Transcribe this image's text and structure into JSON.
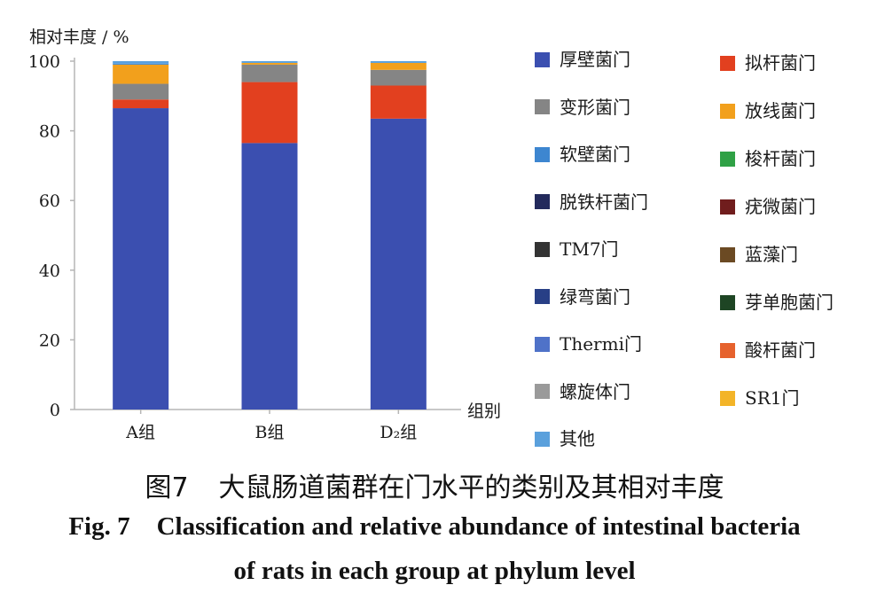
{
  "chart_data": {
    "type": "bar",
    "stacked": true,
    "ylabel": "相对丰度 / %",
    "xlabel": "组别",
    "ylim": [
      0,
      100
    ],
    "yticks": [
      0,
      20,
      40,
      60,
      80,
      100
    ],
    "categories": [
      "A组",
      "B组",
      "D₂组"
    ],
    "series": [
      {
        "name": "厚壁菌门",
        "color": "#3b4fb0",
        "values": [
          86.5,
          76.5,
          83.5
        ]
      },
      {
        "name": "拟杆菌门",
        "color": "#e2401f",
        "values": [
          2.5,
          17.5,
          9.5
        ]
      },
      {
        "name": "变形菌门",
        "color": "#858585",
        "values": [
          4.5,
          5.0,
          4.5
        ]
      },
      {
        "name": "放线菌门",
        "color": "#f2a01c",
        "values": [
          5.5,
          0.5,
          2.0
        ]
      },
      {
        "name": "软壁菌门",
        "color": "#3d86d0",
        "values": [
          0.3,
          0.0,
          0.0
        ]
      },
      {
        "name": "梭杆菌门",
        "color": "#2fa145",
        "values": [
          0.0,
          0.0,
          0.0
        ]
      },
      {
        "name": "脱铁杆菌门",
        "color": "#232a5c",
        "values": [
          0.0,
          0.0,
          0.0
        ]
      },
      {
        "name": "疣微菌门",
        "color": "#701d1d",
        "values": [
          0.0,
          0.0,
          0.0
        ]
      },
      {
        "name": "TM7门",
        "color": "#333333",
        "values": [
          0.0,
          0.0,
          0.0
        ]
      },
      {
        "name": "蓝藻门",
        "color": "#6b4a23",
        "values": [
          0.0,
          0.0,
          0.0
        ]
      },
      {
        "name": "绿弯菌门",
        "color": "#283f86",
        "values": [
          0.0,
          0.0,
          0.0
        ]
      },
      {
        "name": "芽单胞菌门",
        "color": "#1e4524",
        "values": [
          0.0,
          0.0,
          0.0
        ]
      },
      {
        "name": "Thermi门",
        "color": "#4f72c8",
        "values": [
          0.0,
          0.0,
          0.0
        ]
      },
      {
        "name": "酸杆菌门",
        "color": "#e6622d",
        "values": [
          0.0,
          0.0,
          0.0
        ]
      },
      {
        "name": "螺旋体门",
        "color": "#9a9a9a",
        "values": [
          0.0,
          0.0,
          0.0
        ]
      },
      {
        "name": "SR1门",
        "color": "#f3b428",
        "values": [
          0.0,
          0.0,
          0.0
        ]
      },
      {
        "name": "其他",
        "color": "#5aa0dc",
        "values": [
          0.7,
          0.5,
          0.5
        ]
      }
    ],
    "legend": {
      "placement": "right",
      "left_column": [
        "厚壁菌门",
        "变形菌门",
        "软壁菌门",
        "脱铁杆菌门",
        "TM7门",
        "绿弯菌门",
        "Thermi门",
        "螺旋体门",
        "其他"
      ],
      "right_column": [
        "拟杆菌门",
        "放线菌门",
        "梭杆菌门",
        "疣微菌门",
        "蓝藻门",
        "芽单胞菌门",
        "酸杆菌门",
        "SR1门"
      ]
    },
    "grid": false
  },
  "caption": {
    "cn_fig": "图7",
    "cn_title": "大鼠肠道菌群在门水平的类别及其相对丰度",
    "en_fig": "Fig. 7",
    "en_title_line1": "Classification and relative abundance of intestinal bacteria",
    "en_title_line2": "of rats in each group at phylum level"
  }
}
